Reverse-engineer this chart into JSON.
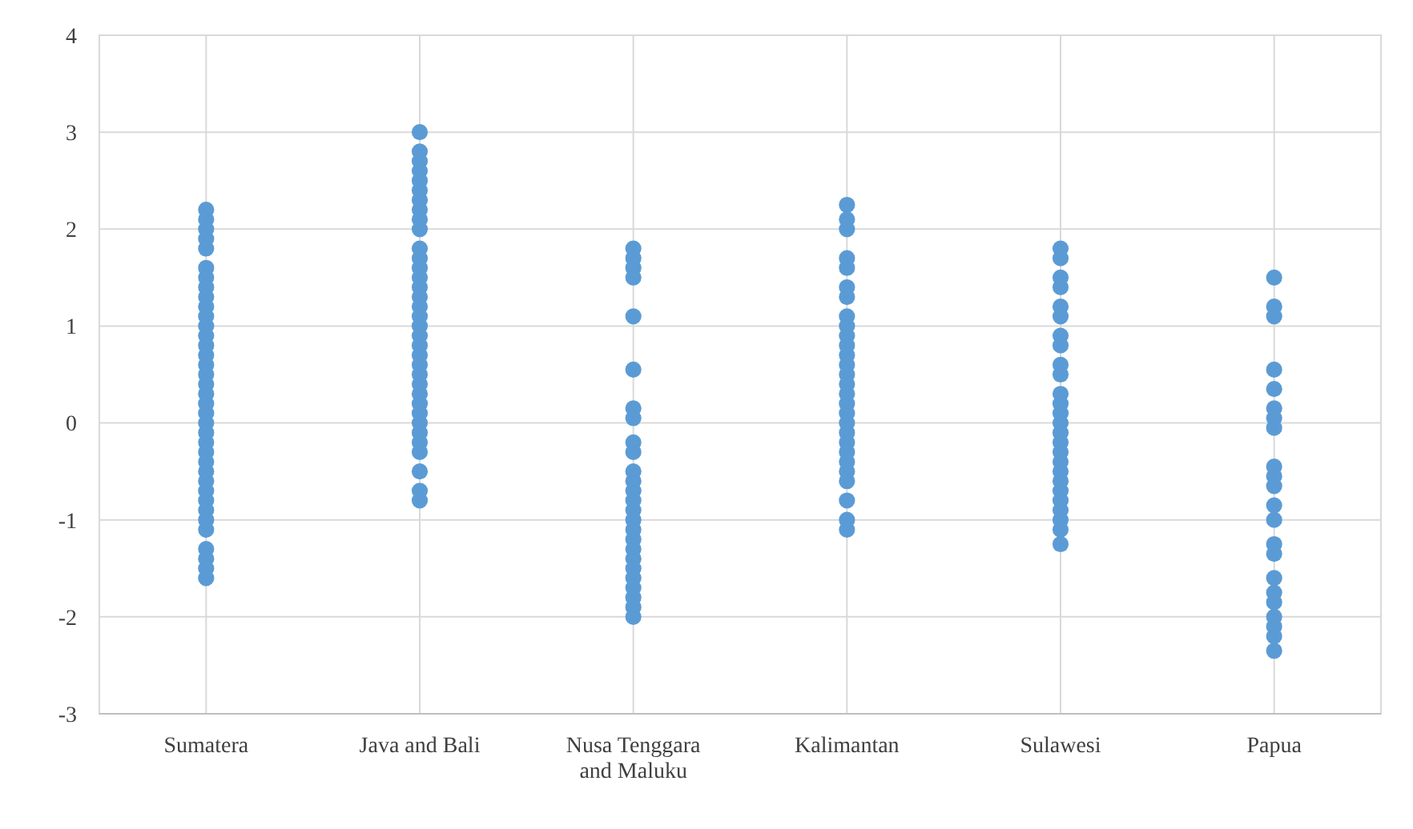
{
  "chart_data": {
    "type": "scatter",
    "categories": [
      "Sumatera",
      "Java and Bali",
      "Nusa Tenggara and Maluku",
      "Kalimantan",
      "Sulawesi",
      "Papua"
    ],
    "ylim": [
      -3,
      4
    ],
    "yticks": [
      -3,
      -2,
      -1,
      0,
      1,
      2,
      3,
      4
    ],
    "grid": true,
    "marker": "circle",
    "series": [
      {
        "color": "#5b9bd5",
        "x": [
          "Sumatera",
          "Sumatera",
          "Sumatera",
          "Sumatera",
          "Sumatera",
          "Sumatera",
          "Sumatera",
          "Sumatera",
          "Sumatera",
          "Sumatera",
          "Sumatera",
          "Sumatera",
          "Sumatera",
          "Sumatera",
          "Sumatera",
          "Sumatera",
          "Sumatera",
          "Sumatera",
          "Sumatera",
          "Sumatera",
          "Sumatera",
          "Sumatera",
          "Sumatera",
          "Sumatera",
          "Sumatera",
          "Sumatera",
          "Sumatera",
          "Sumatera",
          "Sumatera",
          "Sumatera",
          "Sumatera",
          "Sumatera",
          "Sumatera",
          "Sumatera",
          "Sumatera",
          "Sumatera",
          "Sumatera"
        ],
        "values": [
          2.2,
          2.1,
          2.0,
          1.9,
          1.8,
          1.6,
          1.5,
          1.4,
          1.3,
          1.2,
          1.1,
          1.0,
          0.9,
          0.8,
          0.7,
          0.6,
          0.5,
          0.4,
          0.3,
          0.2,
          0.1,
          0,
          -0.1,
          -0.2,
          -0.3,
          -0.4,
          -0.5,
          -0.6,
          -0.7,
          -0.8,
          -0.9,
          -1.0,
          -1.1,
          -1.3,
          -1.4,
          -1.5,
          -1.6
        ]
      },
      {
        "color": "#5b9bd5",
        "x": [
          "Java and Bali",
          "Java and Bali",
          "Java and Bali",
          "Java and Bali",
          "Java and Bali",
          "Java and Bali",
          "Java and Bali",
          "Java and Bali",
          "Java and Bali",
          "Java and Bali",
          "Java and Bali",
          "Java and Bali",
          "Java and Bali",
          "Java and Bali",
          "Java and Bali",
          "Java and Bali",
          "Java and Bali",
          "Java and Bali",
          "Java and Bali",
          "Java and Bali",
          "Java and Bali",
          "Java and Bali",
          "Java and Bali",
          "Java and Bali",
          "Java and Bali",
          "Java and Bali",
          "Java and Bali",
          "Java and Bali",
          "Java and Bali",
          "Java and Bali",
          "Java and Bali",
          "Java and Bali",
          "Java and Bali",
          "Java and Bali",
          "Java and Bali"
        ],
        "values": [
          3.0,
          2.8,
          2.7,
          2.6,
          2.5,
          2.4,
          2.3,
          2.2,
          2.1,
          2.0,
          1.8,
          1.7,
          1.6,
          1.5,
          1.4,
          1.3,
          1.2,
          1.1,
          1.0,
          0.9,
          0.8,
          0.7,
          0.6,
          0.5,
          0.4,
          0.3,
          0.2,
          0.1,
          0,
          -0.1,
          -0.2,
          -0.3,
          -0.5,
          -0.7,
          -0.8
        ]
      },
      {
        "color": "#5b9bd5",
        "x": [
          "Nusa Tenggara and Maluku",
          "Nusa Tenggara and Maluku",
          "Nusa Tenggara and Maluku",
          "Nusa Tenggara and Maluku",
          "Nusa Tenggara and Maluku",
          "Nusa Tenggara and Maluku",
          "Nusa Tenggara and Maluku",
          "Nusa Tenggara and Maluku",
          "Nusa Tenggara and Maluku",
          "Nusa Tenggara and Maluku",
          "Nusa Tenggara and Maluku",
          "Nusa Tenggara and Maluku",
          "Nusa Tenggara and Maluku",
          "Nusa Tenggara and Maluku",
          "Nusa Tenggara and Maluku",
          "Nusa Tenggara and Maluku",
          "Nusa Tenggara and Maluku",
          "Nusa Tenggara and Maluku",
          "Nusa Tenggara and Maluku",
          "Nusa Tenggara and Maluku",
          "Nusa Tenggara and Maluku",
          "Nusa Tenggara and Maluku",
          "Nusa Tenggara and Maluku",
          "Nusa Tenggara and Maluku",
          "Nusa Tenggara and Maluku",
          "Nusa Tenggara and Maluku"
        ],
        "values": [
          1.8,
          1.7,
          1.6,
          1.5,
          1.1,
          0.55,
          0.15,
          0.05,
          -0.2,
          -0.3,
          -0.5,
          -0.6,
          -0.7,
          -0.8,
          -0.9,
          -1.0,
          -1.1,
          -1.2,
          -1.3,
          -1.4,
          -1.5,
          -1.6,
          -1.7,
          -1.8,
          -1.9,
          -2.0
        ]
      },
      {
        "color": "#5b9bd5",
        "x": [
          "Kalimantan",
          "Kalimantan",
          "Kalimantan",
          "Kalimantan",
          "Kalimantan",
          "Kalimantan",
          "Kalimantan",
          "Kalimantan",
          "Kalimantan",
          "Kalimantan",
          "Kalimantan",
          "Kalimantan",
          "Kalimantan",
          "Kalimantan",
          "Kalimantan",
          "Kalimantan",
          "Kalimantan",
          "Kalimantan",
          "Kalimantan",
          "Kalimantan",
          "Kalimantan",
          "Kalimantan",
          "Kalimantan",
          "Kalimantan",
          "Kalimantan",
          "Kalimantan",
          "Kalimantan",
          "Kalimantan"
        ],
        "values": [
          2.25,
          2.1,
          2.0,
          1.7,
          1.6,
          1.4,
          1.3,
          1.1,
          1.0,
          0.9,
          0.8,
          0.7,
          0.6,
          0.5,
          0.4,
          0.3,
          0.2,
          0.1,
          0,
          -0.1,
          -0.2,
          -0.3,
          -0.4,
          -0.5,
          -0.6,
          -0.8,
          -1.0,
          -1.1
        ]
      },
      {
        "color": "#5b9bd5",
        "x": [
          "Sulawesi",
          "Sulawesi",
          "Sulawesi",
          "Sulawesi",
          "Sulawesi",
          "Sulawesi",
          "Sulawesi",
          "Sulawesi",
          "Sulawesi",
          "Sulawesi",
          "Sulawesi",
          "Sulawesi",
          "Sulawesi",
          "Sulawesi",
          "Sulawesi",
          "Sulawesi",
          "Sulawesi",
          "Sulawesi",
          "Sulawesi",
          "Sulawesi",
          "Sulawesi",
          "Sulawesi",
          "Sulawesi",
          "Sulawesi",
          "Sulawesi",
          "Sulawesi"
        ],
        "values": [
          1.8,
          1.7,
          1.5,
          1.4,
          1.2,
          1.1,
          0.9,
          0.8,
          0.6,
          0.5,
          0.3,
          0.2,
          0.1,
          0,
          -0.1,
          -0.2,
          -0.3,
          -0.4,
          -0.5,
          -0.6,
          -0.7,
          -0.8,
          -0.9,
          -1.0,
          -1.1,
          -1.25
        ]
      },
      {
        "color": "#5b9bd5",
        "x": [
          "Papua",
          "Papua",
          "Papua",
          "Papua",
          "Papua",
          "Papua",
          "Papua",
          "Papua",
          "Papua",
          "Papua",
          "Papua",
          "Papua",
          "Papua",
          "Papua",
          "Papua",
          "Papua",
          "Papua",
          "Papua",
          "Papua",
          "Papua",
          "Papua",
          "Papua"
        ],
        "values": [
          1.5,
          1.2,
          1.1,
          0.55,
          0.35,
          0.15,
          0.05,
          -0.05,
          -0.45,
          -0.55,
          -0.65,
          -0.85,
          -1.0,
          -1.25,
          -1.35,
          -1.6,
          -1.75,
          -1.85,
          -2.0,
          -2.1,
          -2.2,
          -2.35
        ]
      }
    ]
  }
}
